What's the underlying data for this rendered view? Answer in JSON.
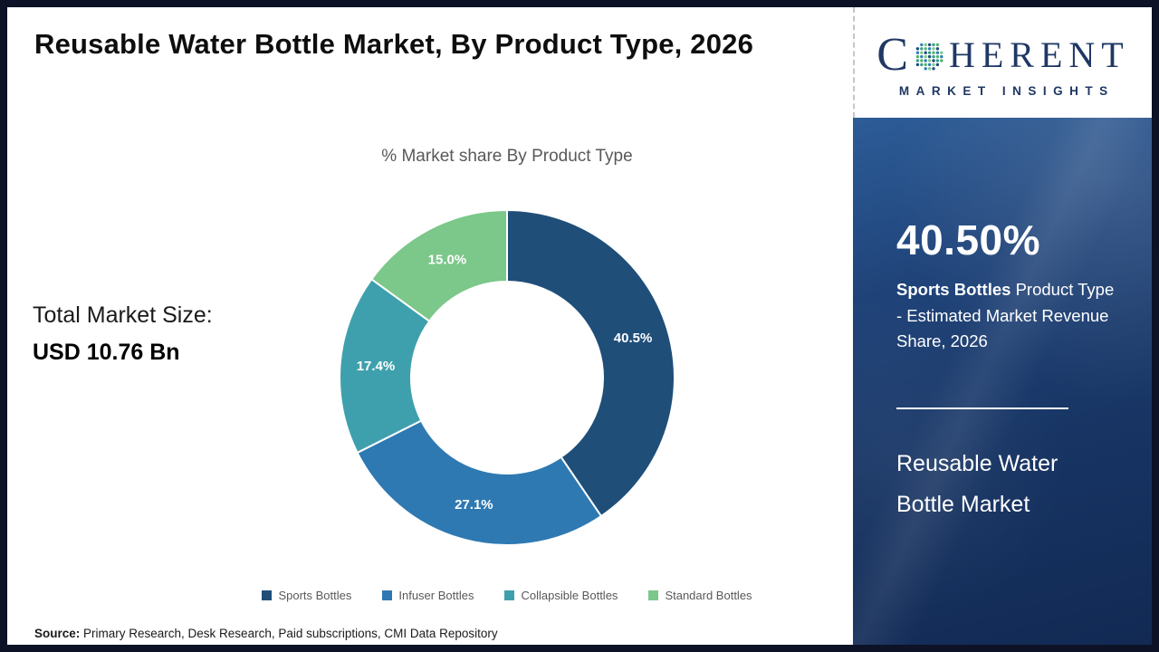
{
  "header": {
    "title": "Reusable Water Bottle Market, By Product Type, 2026"
  },
  "logo": {
    "letter_c": "C",
    "letters_rest": "HERENT",
    "tagline": "MARKET INSIGHTS",
    "text_color": "#1F3864",
    "globe_colors": [
      "#33A18B",
      "#55B36A",
      "#2D7FB5",
      "#7FC88C",
      "#1F4E79"
    ]
  },
  "left_panel": {
    "total_label": "Total Market Size:",
    "total_value": "USD 10.76 Bn"
  },
  "chart_data": {
    "type": "donut",
    "title": "% Market share By Product Type",
    "categories": [
      "Sports Bottles",
      "Infuser Bottles",
      "Collapsible Bottles",
      "Standard Bottles"
    ],
    "values": [
      40.5,
      27.1,
      17.4,
      15.0
    ],
    "slice_labels": [
      "40.5%",
      "27.1%",
      "17.4%",
      "15.0%"
    ],
    "colors": [
      "#1F4E79",
      "#2E79B2",
      "#3FA0AD",
      "#7CC78A"
    ],
    "start_angle_deg": 0,
    "direction": "clockwise",
    "inner_radius_ratio": 0.575,
    "slice_label_color": "#FFFFFF",
    "legend_position": "bottom"
  },
  "sidebar": {
    "highlight_value": "40.50%",
    "highlight_bold": "Sports Bottles",
    "highlight_text": " Product Type - Estimated Market Revenue Share, 2026",
    "market_name": "Reusable Water Bottle Market"
  },
  "footer": {
    "source_label": "Source:",
    "source_text": " Primary Research, Desk Research, Paid subscriptions, CMI Data Repository"
  }
}
